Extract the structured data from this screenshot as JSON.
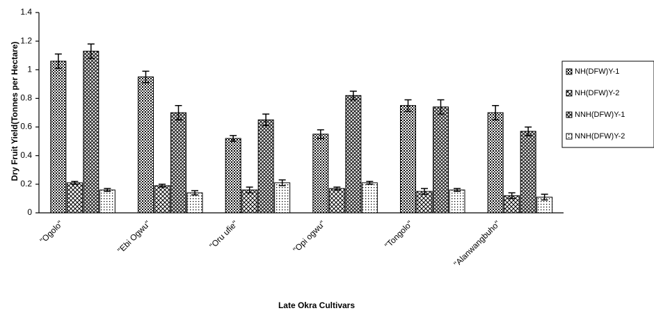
{
  "chart_data": {
    "type": "bar",
    "y_label": "Dry Fruit Yield(Tonnes per Hectare)",
    "x_label": "Late Okra Cultivars",
    "categories": [
      "\"Ogolo\"",
      "\"Ebi Ogwu\"",
      "\"Oru ufie\"",
      "\"Opi ogwu\"",
      "\"Tongolo\"",
      "\"Alanwangbuho\""
    ],
    "series": [
      {
        "name": "NH(DFW)Y-1",
        "color": "#000000",
        "values": [
          1.06,
          0.95,
          0.52,
          0.55,
          0.75,
          0.7
        ],
        "errors": [
          0.05,
          0.04,
          0.02,
          0.03,
          0.04,
          0.05
        ]
      },
      {
        "name": "NH(DFW)Y-2",
        "color": "#000000",
        "values": [
          0.21,
          0.19,
          0.16,
          0.17,
          0.15,
          0.12
        ],
        "errors": [
          0.01,
          0.01,
          0.02,
          0.01,
          0.02,
          0.02
        ]
      },
      {
        "name": "NNH(DFW)Y-1",
        "color": "#000000",
        "values": [
          1.13,
          0.7,
          0.65,
          0.82,
          0.74,
          0.57
        ],
        "errors": [
          0.05,
          0.05,
          0.04,
          0.03,
          0.05,
          0.03
        ]
      },
      {
        "name": "NNH(DFW)Y-2",
        "color": "#000000",
        "values": [
          0.16,
          0.14,
          0.21,
          0.21,
          0.16,
          0.11
        ],
        "errors": [
          0.01,
          0.015,
          0.02,
          0.01,
          0.01,
          0.02
        ]
      }
    ],
    "ylim": [
      0,
      1.4
    ],
    "yticks": [
      0,
      0.2,
      0.4,
      0.6,
      0.8,
      1,
      1.2,
      1.4
    ]
  }
}
